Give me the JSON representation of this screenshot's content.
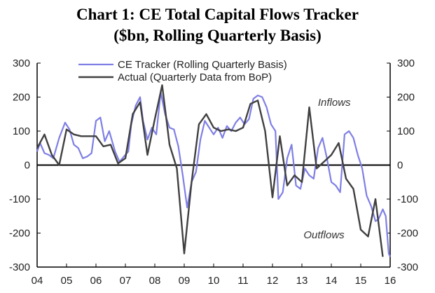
{
  "chart_data": {
    "type": "line",
    "title": "Chart 1: CE Total Capital Flows Tracker",
    "subtitle": "($bn, Rolling Quarterly Basis)",
    "xlabel": "",
    "ylabel": "",
    "xlim": [
      2004.0,
      2016.0
    ],
    "ylim": [
      -300,
      300
    ],
    "y_ticks": [
      300,
      200,
      100,
      0,
      -100,
      -200,
      -300
    ],
    "x_ticks": [
      {
        "value": 2004,
        "label": "04"
      },
      {
        "value": 2005,
        "label": "05"
      },
      {
        "value": 2006,
        "label": "06"
      },
      {
        "value": 2007,
        "label": "07"
      },
      {
        "value": 2008,
        "label": "08"
      },
      {
        "value": 2009,
        "label": "09"
      },
      {
        "value": 2010,
        "label": "10"
      },
      {
        "value": 2011,
        "label": "11"
      },
      {
        "value": 2012,
        "label": "12"
      },
      {
        "value": 2013,
        "label": "13"
      },
      {
        "value": 2014,
        "label": "14"
      },
      {
        "value": 2015,
        "label": "15"
      },
      {
        "value": 2016,
        "label": "16"
      }
    ],
    "annotations": [
      {
        "text": "Inflows",
        "x": 2014.1,
        "y": 185
      },
      {
        "text": "Outflows",
        "x": 2013.75,
        "y": -205
      }
    ],
    "series": [
      {
        "name": "CE Tracker (Rolling Quarterly Basis)",
        "color": "#7f7fe6",
        "x": [
          2004.0,
          2004.1,
          2004.25,
          2004.4,
          2004.55,
          2004.75,
          2004.95,
          2005.1,
          2005.25,
          2005.4,
          2005.55,
          2005.7,
          2005.85,
          2006.0,
          2006.15,
          2006.3,
          2006.45,
          2006.55,
          2006.65,
          2006.8,
          2006.95,
          2007.1,
          2007.2,
          2007.35,
          2007.5,
          2007.6,
          2007.75,
          2007.9,
          2008.05,
          2008.2,
          2008.35,
          2008.5,
          2008.65,
          2008.8,
          2008.95,
          2009.1,
          2009.25,
          2009.4,
          2009.55,
          2009.7,
          2009.85,
          2010.0,
          2010.15,
          2010.3,
          2010.45,
          2010.6,
          2010.75,
          2010.9,
          2011.05,
          2011.2,
          2011.35,
          2011.5,
          2011.65,
          2011.8,
          2011.95,
          2012.1,
          2012.2,
          2012.35,
          2012.5,
          2012.65,
          2012.8,
          2012.95,
          2013.1,
          2013.25,
          2013.4,
          2013.55,
          2013.7,
          2013.85,
          2014.0,
          2014.15,
          2014.3,
          2014.45,
          2014.6,
          2014.75,
          2014.9,
          2015.05,
          2015.2,
          2015.35,
          2015.5,
          2015.6,
          2015.75,
          2015.85,
          2015.95
        ],
        "y": [
          40,
          65,
          35,
          30,
          20,
          80,
          125,
          105,
          60,
          50,
          20,
          25,
          35,
          130,
          140,
          70,
          100,
          70,
          40,
          10,
          25,
          40,
          120,
          175,
          200,
          130,
          75,
          110,
          90,
          215,
          150,
          110,
          105,
          55,
          -30,
          -125,
          -50,
          -20,
          75,
          130,
          110,
          90,
          110,
          80,
          115,
          100,
          125,
          140,
          120,
          135,
          195,
          205,
          200,
          170,
          120,
          100,
          -100,
          -80,
          20,
          60,
          -60,
          -70,
          -10,
          -30,
          -40,
          50,
          80,
          20,
          -50,
          -60,
          -80,
          90,
          100,
          80,
          30,
          -10,
          -90,
          -120,
          -165,
          -160,
          -130,
          -150,
          -260
        ],
        "x_ext": [
          2016.0
        ],
        "y_ext": [
          -270
        ]
      },
      {
        "name": "Actual (Quarterly Data from BoP)",
        "color": "#404040",
        "x": [
          2004.0,
          2004.25,
          2004.5,
          2004.75,
          2005.0,
          2005.25,
          2005.5,
          2005.75,
          2006.0,
          2006.25,
          2006.5,
          2006.75,
          2007.0,
          2007.25,
          2007.5,
          2007.75,
          2008.0,
          2008.25,
          2008.5,
          2008.75,
          2009.0,
          2009.25,
          2009.5,
          2009.75,
          2010.0,
          2010.25,
          2010.5,
          2010.75,
          2011.0,
          2011.25,
          2011.5,
          2011.75,
          2012.0,
          2012.25,
          2012.5,
          2012.75,
          2013.0,
          2013.25,
          2013.5,
          2013.75,
          2014.0,
          2014.25,
          2014.5,
          2014.75,
          2015.0,
          2015.25,
          2015.5,
          2015.75
        ],
        "y": [
          50,
          90,
          30,
          0,
          105,
          90,
          85,
          85,
          85,
          55,
          60,
          5,
          20,
          150,
          185,
          30,
          135,
          235,
          60,
          -10,
          -260,
          -50,
          120,
          150,
          110,
          100,
          105,
          100,
          110,
          180,
          190,
          100,
          -95,
          85,
          -60,
          -30,
          -50,
          170,
          -10,
          10,
          30,
          65,
          -40,
          -70,
          -190,
          -210,
          -100,
          -270
        ]
      }
    ]
  }
}
